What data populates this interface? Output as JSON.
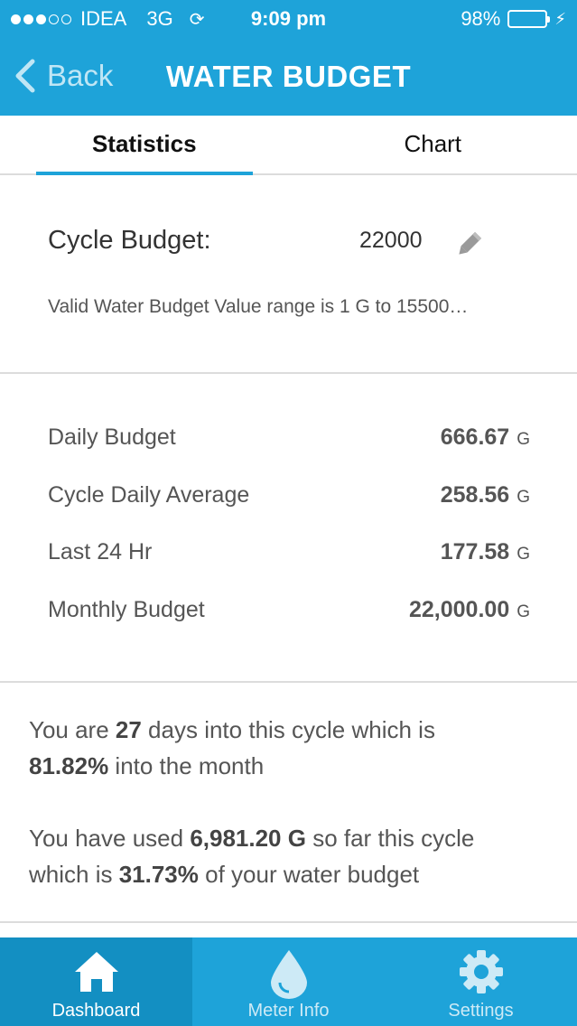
{
  "status_bar": {
    "carrier": "IDEA",
    "network": "3G",
    "time": "9:09 pm",
    "battery": "98%",
    "battery_fraction": 0.98
  },
  "nav": {
    "back_label": "Back",
    "title": "WATER BUDGET"
  },
  "tabs": [
    {
      "label": "Statistics",
      "active": true
    },
    {
      "label": "Chart",
      "active": false
    }
  ],
  "cycle_budget": {
    "label": "Cycle Budget:",
    "value": "22000",
    "hint": "Valid Water Budget Value range is 1 G to 15500…"
  },
  "stats": [
    {
      "label": "Daily Budget",
      "value": "666.67",
      "unit": "G"
    },
    {
      "label": "Cycle Daily Average",
      "value": "258.56",
      "unit": "G"
    },
    {
      "label": "Last 24 Hr",
      "value": "177.58",
      "unit": "G"
    },
    {
      "label": "Monthly Budget",
      "value": "22,000.00",
      "unit": "G"
    }
  ],
  "summary": {
    "p1_a": "You are ",
    "p1_days": "27",
    "p1_b": " days into this cycle which is",
    "p1_pct": "81.82%",
    "p1_c": " into the month",
    "p2_a": "You have used ",
    "p2_used": "6,981.20 G",
    "p2_b": " so far this cycle",
    "p2_c": "which is ",
    "p2_pct": "31.73%",
    "p2_d": " of your water budget"
  },
  "tabbar": [
    {
      "label": "Dashboard",
      "icon": "home-icon",
      "active": true
    },
    {
      "label": "Meter Info",
      "icon": "water-drop-icon",
      "active": false
    },
    {
      "label": "Settings",
      "icon": "gear-icon",
      "active": false
    }
  ],
  "colors": {
    "primary": "#1ea3d9",
    "active_tab_bg": "#138fc2",
    "battery_fill": "#4cd964"
  }
}
